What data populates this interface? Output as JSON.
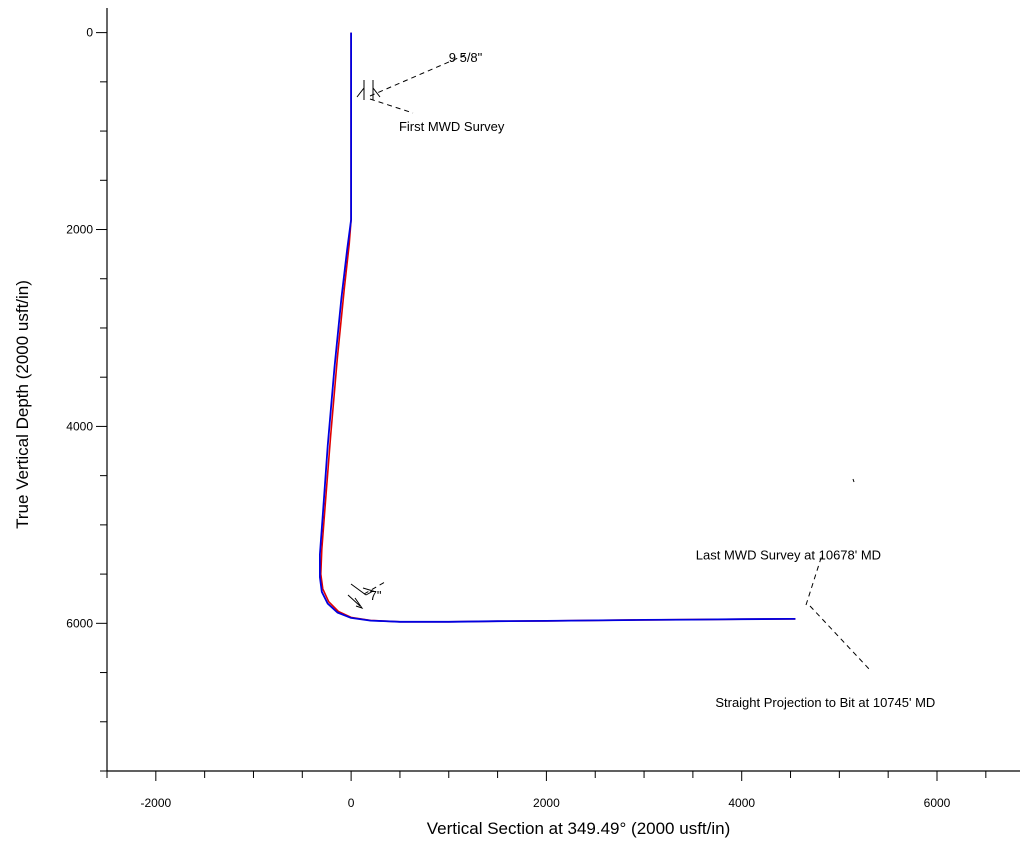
{
  "chart_data": {
    "type": "line",
    "xlabel": "Vertical Section at 349.49° (2000 usft/in)",
    "ylabel": "True Vertical Depth (2000 usft/in)",
    "xlim": [
      -2500,
      6850
    ],
    "ylim": [
      7500,
      -250
    ],
    "y_inverted": true,
    "x_ticks": [
      -2000,
      0,
      2000,
      4000,
      6000
    ],
    "y_ticks": [
      0,
      2000,
      4000,
      6000
    ],
    "grid": false,
    "legend": "none",
    "series": [
      {
        "color": "#e00000",
        "x": [
          0,
          0,
          0,
          -20,
          -70,
          -140,
          -210,
          -265,
          -300,
          -310,
          -290,
          -230,
          -130,
          0,
          200,
          500,
          1000,
          1500,
          2000,
          3000,
          3500,
          4000,
          4500,
          4550
        ],
        "y": [
          0,
          650,
          1900,
          2150,
          2600,
          3300,
          4100,
          4800,
          5250,
          5500,
          5650,
          5780,
          5880,
          5940,
          5970,
          5985,
          5985,
          5978,
          5975,
          5965,
          5962,
          5958,
          5955,
          5955
        ]
      },
      {
        "color": "#0000e0",
        "x": [
          0,
          0,
          0,
          -40,
          -100,
          -170,
          -240,
          -290,
          -320,
          -320,
          -300,
          -240,
          -140,
          0,
          200,
          500,
          1000,
          1500,
          2000,
          3000,
          3500,
          4000,
          4500,
          4550
        ],
        "y": [
          0,
          650,
          1900,
          2200,
          2700,
          3400,
          4200,
          4900,
          5300,
          5530,
          5680,
          5800,
          5890,
          5945,
          5972,
          5985,
          5985,
          5978,
          5975,
          5965,
          5962,
          5958,
          5955,
          5955
        ]
      }
    ],
    "annotations": [
      {
        "text": "9 5/8\"",
        "x": 1000,
        "y": 250
      },
      {
        "text": "First MWD Survey",
        "x": 490,
        "y": 950
      },
      {
        "text": "7\"",
        "x": 190,
        "y": 5710
      },
      {
        "text": "Last MWD Survey at 10678' MD",
        "x": 3530,
        "y": 5300
      },
      {
        "text": "Straight Projection to Bit at 10745' MD",
        "x": 3730,
        "y": 6800
      }
    ]
  }
}
